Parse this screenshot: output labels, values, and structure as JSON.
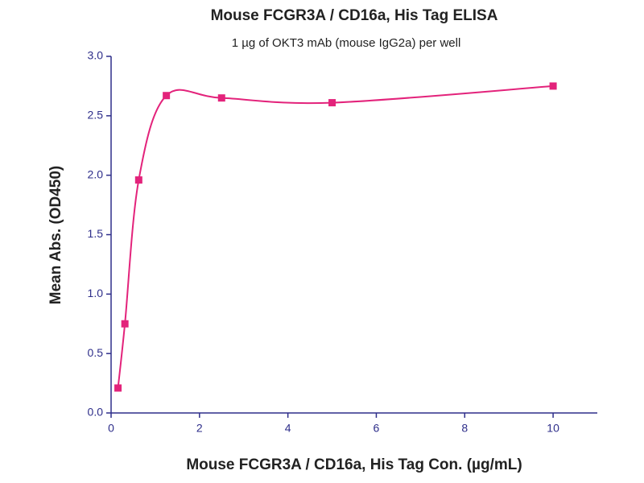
{
  "chart_data": {
    "type": "scatter",
    "title": "Mouse FCGR3A / CD16a, His Tag  ELISA",
    "subtitle": "1 µg of OKT3 mAb (mouse IgG2a) per well",
    "x_label": "Mouse FCGR3A / CD16a, His Tag Con. (µg/mL)",
    "y_label": "Mean Abs. (OD450)",
    "series": [
      {
        "name": "Mean Abs.",
        "color": "#e3237b",
        "x": [
          0.156,
          0.3125,
          0.625,
          1.25,
          2.5,
          5,
          10
        ],
        "values": [
          0.21,
          0.75,
          1.96,
          2.67,
          2.65,
          2.61,
          2.75
        ]
      }
    ],
    "fit_line": true,
    "xlim": [
      0,
      11
    ],
    "xticks": [
      0,
      2,
      4,
      6,
      8,
      10
    ],
    "ylim": [
      0,
      3
    ],
    "yticks": [
      {
        "value": 0,
        "label": "0.0"
      },
      0.5,
      {
        "value": 1,
        "label": "1.0"
      },
      1.5,
      {
        "value": 2,
        "label": "2.0"
      },
      2.5,
      {
        "value": 3,
        "label": "3.0"
      }
    ],
    "axis_color": "#2e2e8a"
  }
}
